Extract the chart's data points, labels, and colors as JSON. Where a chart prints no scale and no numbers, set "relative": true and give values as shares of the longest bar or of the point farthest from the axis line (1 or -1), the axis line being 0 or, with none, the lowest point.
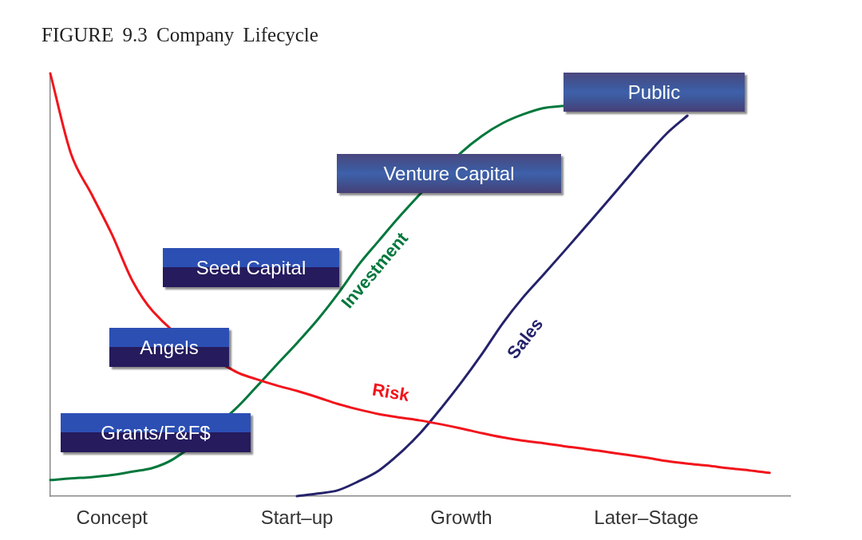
{
  "chart_data": {
    "type": "line",
    "title": "FIGURE 9.3 Company Lifecycle",
    "relative": true,
    "marker": "none",
    "categories": [
      null,
      null,
      null,
      "Concept",
      null,
      null,
      null,
      null,
      null,
      null,
      null,
      null,
      "Start–up",
      null,
      null,
      null,
      null,
      null,
      null,
      null,
      "Growth",
      null,
      null,
      null,
      null,
      null,
      null,
      null,
      null,
      "Later–Stage",
      null,
      null,
      null,
      null,
      null,
      null,
      null
    ],
    "series": [
      {
        "name": "Risk",
        "color": "#f2141b",
        "values": [
          1.0,
          0.811,
          0.715,
          0.619,
          0.509,
          0.437,
          null,
          null,
          null,
          0.295,
          0.277,
          0.262,
          0.249,
          0.234,
          0.218,
          0.205,
          0.194,
          0.186,
          0.179,
          0.17,
          0.16,
          0.149,
          0.139,
          0.131,
          0.125,
          0.118,
          0.112,
          0.105,
          0.098,
          0.091,
          0.083,
          0.077,
          0.072,
          0.066,
          0.061,
          0.055,
          null
        ]
      },
      {
        "name": "Investment",
        "color": "#00773c",
        "values": [
          0.038,
          0.042,
          0.045,
          0.05,
          0.058,
          0.067,
          0.088,
          null,
          null,
          0.206,
          0.257,
          0.31,
          0.362,
          0.417,
          0.479,
          0.547,
          0.605,
          0.662,
          null,
          null,
          0.813,
          0.852,
          0.882,
          0.903,
          0.918,
          0.923,
          null,
          null,
          null,
          null,
          null,
          null,
          null,
          null,
          null,
          null,
          null
        ]
      },
      {
        "name": "Sales",
        "color": "#25236b",
        "values": [
          null,
          null,
          null,
          null,
          null,
          null,
          null,
          null,
          null,
          null,
          null,
          null,
          0,
          0.006,
          0.014,
          0.035,
          0.061,
          0.101,
          0.149,
          0.207,
          0.269,
          0.336,
          0.408,
          0.47,
          0.524,
          0.579,
          0.635,
          0.691,
          0.748,
          0.805,
          0.858,
          0.9,
          null,
          null,
          null,
          null,
          null
        ]
      }
    ],
    "annotations": [
      "Grants/F&F$",
      "Angels",
      "Seed Capital",
      "Venture Capital",
      "Public"
    ]
  }
}
